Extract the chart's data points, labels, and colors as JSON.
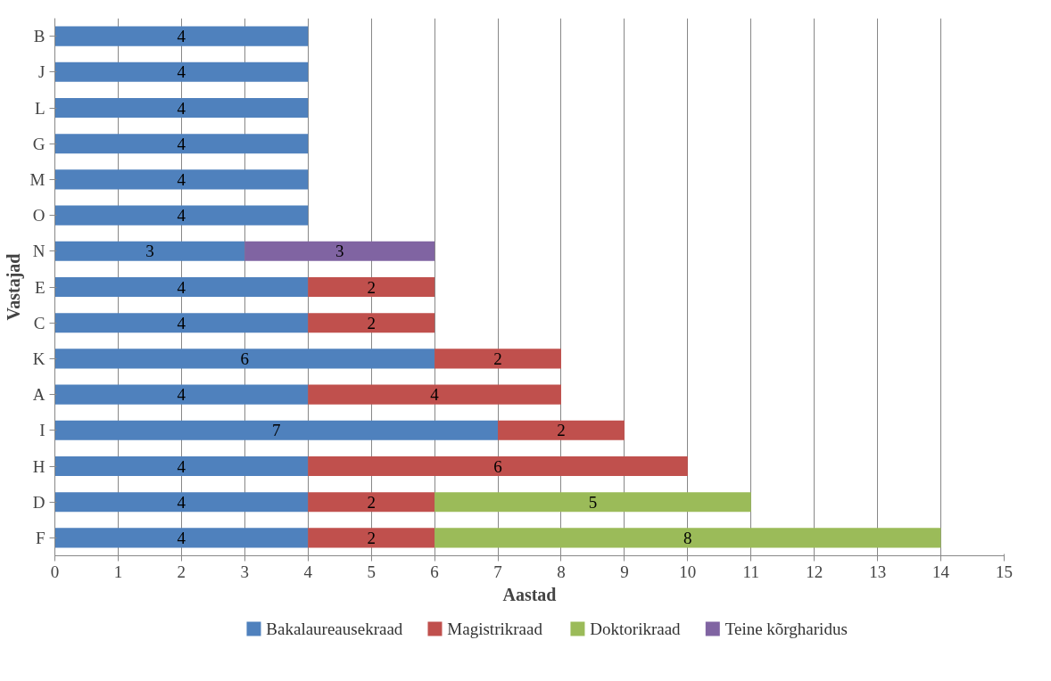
{
  "chart_data": {
    "type": "bar",
    "orientation": "horizontal",
    "stacked": true,
    "xlabel": "Aastad",
    "ylabel": "Vastajad",
    "categories": [
      "B",
      "J",
      "L",
      "G",
      "M",
      "O",
      "N",
      "E",
      "C",
      "K",
      "A",
      "I",
      "H",
      "D",
      "F"
    ],
    "series": [
      {
        "name": "Bakalaureausekraad",
        "color": "#4f81bd",
        "values": [
          4,
          4,
          4,
          4,
          4,
          4,
          3,
          4,
          4,
          6,
          4,
          7,
          4,
          4,
          4
        ]
      },
      {
        "name": "Magistrikraad",
        "color": "#c0504d",
        "values": [
          null,
          null,
          null,
          null,
          null,
          null,
          null,
          2,
          2,
          2,
          4,
          2,
          6,
          2,
          2
        ]
      },
      {
        "name": "Doktorikraad",
        "color": "#9bbb59",
        "values": [
          null,
          null,
          null,
          null,
          null,
          null,
          null,
          null,
          null,
          null,
          null,
          null,
          null,
          5,
          8
        ]
      },
      {
        "name": "Teine kõrgharidus",
        "color": "#8064a2",
        "values": [
          null,
          null,
          null,
          null,
          null,
          null,
          3,
          null,
          null,
          null,
          null,
          null,
          null,
          null,
          null
        ]
      }
    ],
    "xlim": [
      0,
      15
    ],
    "xticks": [
      0,
      1,
      2,
      3,
      4,
      5,
      6,
      7,
      8,
      9,
      10,
      11,
      12,
      13,
      14,
      15
    ],
    "grid": "x",
    "legend": "bottom",
    "data_labels": true
  }
}
